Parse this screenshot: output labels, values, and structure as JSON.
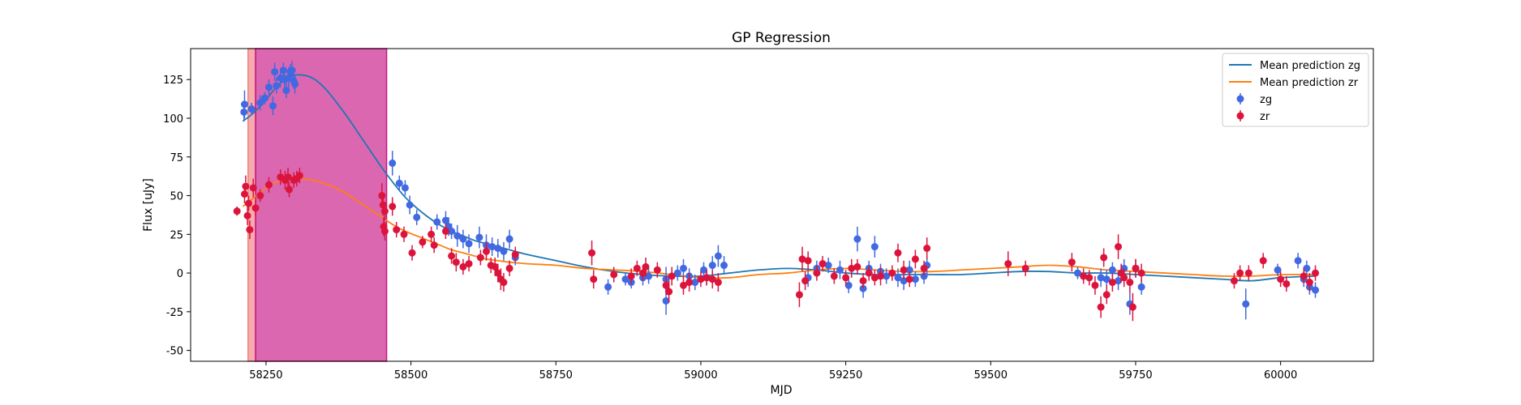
{
  "chart_data": {
    "type": "scatter",
    "title": "GP Regression",
    "xlabel": "MJD",
    "ylabel": "Flux [uJy]",
    "xlim": [
      58120,
      60160
    ],
    "ylim": [
      -57,
      145
    ],
    "xticks": [
      58250,
      58500,
      58750,
      59000,
      59250,
      59500,
      59750,
      60000
    ],
    "yticks": [
      -50,
      -25,
      0,
      25,
      50,
      75,
      100,
      125
    ],
    "grid": false,
    "legend_position": "upper right",
    "legend": [
      "Mean prediction zg",
      "Mean prediction zr",
      "zg",
      "zr"
    ],
    "colors": {
      "zg_line": "#1f77b4",
      "zr_line": "#ff7f0e",
      "zg_points": "#4169e1",
      "zr_points": "#dc143c",
      "span_a": "#f08080",
      "span_b": "#c71585"
    },
    "spans": [
      {
        "x": [
          58219,
          58232
        ],
        "color": "#f08080"
      },
      {
        "x": [
          58232,
          58458
        ],
        "color": "#c71585"
      }
    ],
    "series": [
      {
        "name": "Mean prediction zg",
        "kind": "line",
        "x": [
          58210,
          58230,
          58250,
          58270,
          58290,
          58310,
          58330,
          58350,
          58370,
          58390,
          58410,
          58430,
          58450,
          58470,
          58490,
          58510,
          58530,
          58550,
          58570,
          58590,
          58610,
          58630,
          58650,
          58670,
          58700,
          58750,
          58800,
          58850,
          58900,
          58950,
          59000,
          59050,
          59100,
          59150,
          59200,
          59250,
          59300,
          59350,
          59400,
          59450,
          59500,
          59550,
          59600,
          59650,
          59700,
          59750,
          59800,
          59850,
          59900,
          59950,
          60000,
          60060
        ],
        "y": [
          98,
          104,
          112,
          121,
          127,
          128,
          126,
          120,
          111,
          101,
          90,
          79,
          68,
          58,
          49,
          42,
          36,
          31,
          27,
          24,
          21,
          19,
          17,
          15,
          12,
          8,
          4,
          1,
          -1,
          -2,
          -2,
          0,
          2,
          3,
          2,
          0,
          -1,
          -1,
          -1,
          -1,
          0,
          1,
          1,
          0,
          0,
          -1,
          -2,
          -3,
          -4,
          -5,
          -3,
          -2
        ]
      },
      {
        "name": "Mean prediction zr",
        "kind": "line",
        "x": [
          58210,
          58230,
          58250,
          58270,
          58290,
          58310,
          58330,
          58350,
          58370,
          58390,
          58410,
          58430,
          58450,
          58470,
          58490,
          58510,
          58530,
          58550,
          58570,
          58590,
          58610,
          58630,
          58650,
          58670,
          58700,
          58750,
          58800,
          58850,
          58900,
          58950,
          59000,
          59050,
          59100,
          59150,
          59200,
          59250,
          59300,
          59350,
          59400,
          59450,
          59500,
          59550,
          59600,
          59650,
          59700,
          59750,
          59800,
          59850,
          59900,
          59950,
          60000,
          60060
        ],
        "y": [
          43,
          49,
          55,
          59,
          61,
          61,
          60,
          58,
          55,
          51,
          46,
          41,
          36,
          31,
          27,
          24,
          21,
          18,
          15,
          13,
          11,
          9,
          8,
          7,
          6,
          5,
          3,
          2,
          1,
          -1,
          -3,
          -3,
          -1,
          0,
          2,
          3,
          2,
          1,
          1,
          2,
          3,
          4,
          5,
          4,
          2,
          1,
          0,
          -1,
          -2,
          -2,
          -1,
          -1
        ]
      },
      {
        "name": "zg",
        "kind": "errorbar",
        "points": [
          [
            58212,
            104,
            6
          ],
          [
            58213,
            109,
            9
          ],
          [
            58225,
            106,
            4
          ],
          [
            58240,
            110,
            5
          ],
          [
            58248,
            113,
            4
          ],
          [
            58262,
            108,
            6
          ],
          [
            58265,
            130,
            6
          ],
          [
            58275,
            126,
            6
          ],
          [
            58280,
            131,
            5
          ],
          [
            58285,
            118,
            5
          ],
          [
            58289,
            126,
            7
          ],
          [
            58295,
            131,
            6
          ],
          [
            58300,
            122,
            6
          ],
          [
            58255,
            120,
            5
          ],
          [
            58268,
            121,
            5
          ],
          [
            58282,
            125,
            5
          ],
          [
            58292,
            130,
            5
          ],
          [
            58298,
            124,
            5
          ],
          [
            58468,
            71,
            8
          ],
          [
            58480,
            58,
            5
          ],
          [
            58490,
            55,
            5
          ],
          [
            58498,
            44,
            6
          ],
          [
            58510,
            36,
            5
          ],
          [
            58545,
            33,
            5
          ],
          [
            58560,
            34,
            6
          ],
          [
            58565,
            30,
            6
          ],
          [
            58570,
            27,
            5
          ],
          [
            58580,
            24,
            7
          ],
          [
            58590,
            22,
            6
          ],
          [
            58600,
            19,
            6
          ],
          [
            58618,
            23,
            7
          ],
          [
            58630,
            18,
            7
          ],
          [
            58640,
            17,
            6
          ],
          [
            58650,
            16,
            6
          ],
          [
            58660,
            14,
            6
          ],
          [
            58670,
            22,
            6
          ],
          [
            58680,
            10,
            5
          ],
          [
            58840,
            -9,
            5
          ],
          [
            58870,
            -4,
            4
          ],
          [
            58880,
            -6,
            4
          ],
          [
            58900,
            -3,
            5
          ],
          [
            58910,
            -2,
            5
          ],
          [
            58940,
            -18,
            9
          ],
          [
            58940,
            -4,
            8
          ],
          [
            58960,
            0,
            5
          ],
          [
            58970,
            3,
            6
          ],
          [
            58980,
            -2,
            5
          ],
          [
            58990,
            -6,
            5
          ],
          [
            59005,
            2,
            5
          ],
          [
            59010,
            -3,
            5
          ],
          [
            59020,
            5,
            6
          ],
          [
            59030,
            11,
            7
          ],
          [
            59040,
            5,
            6
          ],
          [
            59185,
            -3,
            6
          ],
          [
            59200,
            3,
            5
          ],
          [
            59220,
            5,
            5
          ],
          [
            59240,
            2,
            6
          ],
          [
            59255,
            -8,
            5
          ],
          [
            59270,
            22,
            8
          ],
          [
            59280,
            -10,
            6
          ],
          [
            59290,
            3,
            5
          ],
          [
            59300,
            17,
            7
          ],
          [
            59310,
            1,
            5
          ],
          [
            59320,
            -2,
            5
          ],
          [
            59340,
            -3,
            6
          ],
          [
            59350,
            -5,
            6
          ],
          [
            59360,
            2,
            6
          ],
          [
            59370,
            -4,
            5
          ],
          [
            59385,
            -2,
            5
          ],
          [
            59390,
            5,
            6
          ],
          [
            59650,
            0,
            4
          ],
          [
            59690,
            -3,
            6
          ],
          [
            59700,
            -4,
            6
          ],
          [
            59710,
            2,
            5
          ],
          [
            59720,
            -5,
            6
          ],
          [
            59730,
            3,
            6
          ],
          [
            59740,
            -20,
            7
          ],
          [
            59750,
            3,
            6
          ],
          [
            59760,
            -9,
            5
          ],
          [
            59940,
            -20,
            10
          ],
          [
            59995,
            2,
            4
          ],
          [
            60030,
            8,
            5
          ],
          [
            60040,
            -4,
            5
          ],
          [
            60045,
            3,
            5
          ],
          [
            60050,
            -9,
            5
          ],
          [
            60060,
            -11,
            5
          ]
        ]
      },
      {
        "name": "zr",
        "kind": "errorbar",
        "points": [
          [
            58200,
            40,
            3
          ],
          [
            58213,
            51,
            6
          ],
          [
            58215,
            56,
            7
          ],
          [
            58218,
            37,
            6
          ],
          [
            58220,
            45,
            5
          ],
          [
            58222,
            28,
            6
          ],
          [
            58228,
            55,
            6
          ],
          [
            58232,
            42,
            5
          ],
          [
            58240,
            50,
            4
          ],
          [
            58255,
            57,
            5
          ],
          [
            58275,
            62,
            5
          ],
          [
            58283,
            60,
            6
          ],
          [
            58288,
            62,
            6
          ],
          [
            58290,
            54,
            5
          ],
          [
            58298,
            60,
            5
          ],
          [
            58303,
            61,
            5
          ],
          [
            58308,
            63,
            5
          ],
          [
            58450,
            50,
            8
          ],
          [
            58452,
            44,
            7
          ],
          [
            58455,
            40,
            6
          ],
          [
            58453,
            30,
            6
          ],
          [
            58455,
            27,
            6
          ],
          [
            58468,
            43,
            6
          ],
          [
            58475,
            28,
            5
          ],
          [
            58488,
            25,
            5
          ],
          [
            58502,
            13,
            5
          ],
          [
            58520,
            20,
            4
          ],
          [
            58535,
            25,
            5
          ],
          [
            58540,
            18,
            5
          ],
          [
            58560,
            27,
            5
          ],
          [
            58570,
            11,
            5
          ],
          [
            58578,
            7,
            6
          ],
          [
            58590,
            4,
            5
          ],
          [
            58600,
            6,
            5
          ],
          [
            58620,
            10,
            5
          ],
          [
            58630,
            14,
            6
          ],
          [
            58638,
            5,
            5
          ],
          [
            58645,
            4,
            6
          ],
          [
            58650,
            0,
            6
          ],
          [
            58655,
            -4,
            7
          ],
          [
            58660,
            -6,
            6
          ],
          [
            58670,
            3,
            5
          ],
          [
            58680,
            12,
            5
          ],
          [
            58812,
            13,
            8
          ],
          [
            58815,
            -4,
            6
          ],
          [
            58850,
            -1,
            5
          ],
          [
            58880,
            -2,
            5
          ],
          [
            58890,
            3,
            5
          ],
          [
            58900,
            0,
            5
          ],
          [
            58905,
            4,
            6
          ],
          [
            58925,
            2,
            5
          ],
          [
            58940,
            -8,
            6
          ],
          [
            58945,
            -12,
            7
          ],
          [
            58950,
            -2,
            6
          ],
          [
            58970,
            -8,
            6
          ],
          [
            58980,
            -6,
            6
          ],
          [
            59000,
            -4,
            5
          ],
          [
            59010,
            -3,
            5
          ],
          [
            59020,
            -4,
            6
          ],
          [
            59030,
            -6,
            6
          ],
          [
            59170,
            -14,
            8
          ],
          [
            59175,
            9,
            8
          ],
          [
            59180,
            -5,
            6
          ],
          [
            59185,
            8,
            6
          ],
          [
            59200,
            0,
            5
          ],
          [
            59210,
            6,
            5
          ],
          [
            59230,
            -2,
            5
          ],
          [
            59250,
            -3,
            5
          ],
          [
            59260,
            3,
            6
          ],
          [
            59270,
            4,
            5
          ],
          [
            59280,
            -5,
            5
          ],
          [
            59290,
            0,
            5
          ],
          [
            59300,
            -3,
            5
          ],
          [
            59310,
            -2,
            6
          ],
          [
            59330,
            0,
            5
          ],
          [
            59340,
            13,
            6
          ],
          [
            59350,
            2,
            6
          ],
          [
            59360,
            -4,
            5
          ],
          [
            59370,
            9,
            6
          ],
          [
            59385,
            3,
            5
          ],
          [
            59390,
            16,
            7
          ],
          [
            59530,
            6,
            8
          ],
          [
            59560,
            3,
            5
          ],
          [
            59640,
            7,
            6
          ],
          [
            59660,
            -2,
            5
          ],
          [
            59670,
            -3,
            5
          ],
          [
            59680,
            -8,
            6
          ],
          [
            59690,
            -22,
            7
          ],
          [
            59695,
            10,
            6
          ],
          [
            59700,
            -14,
            6
          ],
          [
            59710,
            -6,
            6
          ],
          [
            59720,
            17,
            8
          ],
          [
            59725,
            0,
            6
          ],
          [
            59730,
            -3,
            6
          ],
          [
            59740,
            -6,
            7
          ],
          [
            59745,
            -22,
            9
          ],
          [
            59750,
            3,
            6
          ],
          [
            59760,
            0,
            6
          ],
          [
            59920,
            -5,
            5
          ],
          [
            59930,
            0,
            5
          ],
          [
            59945,
            0,
            5
          ],
          [
            59970,
            8,
            5
          ],
          [
            60000,
            -4,
            5
          ],
          [
            60010,
            -7,
            5
          ],
          [
            60040,
            -2,
            5
          ],
          [
            60050,
            -6,
            6
          ],
          [
            60060,
            0,
            5
          ]
        ]
      }
    ]
  }
}
